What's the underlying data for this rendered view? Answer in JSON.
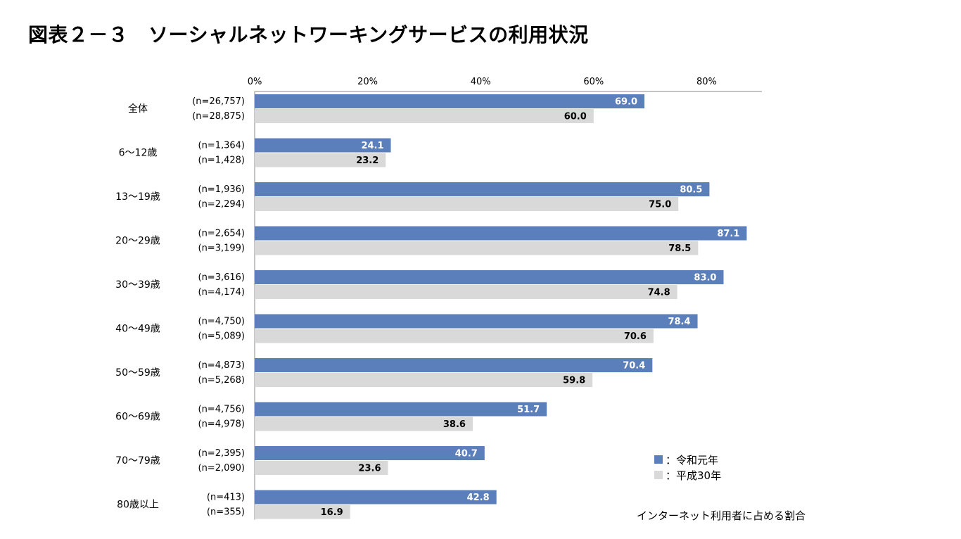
{
  "title": "図表２－３　ソーシャルネットワーキングサービスの利用状況",
  "note": "インターネット利用者に占める割合",
  "colors": {
    "series_reiwa": "#5b7fba",
    "series_heisei": "#d9d9d9",
    "axis": "#888888"
  },
  "legend": [
    {
      "label": "：令和元年"
    },
    {
      "label": "：平成30年"
    }
  ],
  "chart_data": {
    "type": "bar",
    "orientation": "horizontal",
    "title": "図表２－３　ソーシャルネットワーキングサービスの利用状況",
    "xlim": [
      0,
      90
    ],
    "xticks": [
      0,
      20,
      40,
      60,
      80
    ],
    "xtick_labels": [
      "0%",
      "20%",
      "40%",
      "60%",
      "80%"
    ],
    "categories": [
      "全体",
      "6～12歳",
      "13～19歳",
      "20～29歳",
      "30～39歳",
      "40～49歳",
      "50～59歳",
      "60～69歳",
      "70～79歳",
      "80歳以上"
    ],
    "series": [
      {
        "name": "令和元年",
        "values": [
          69.0,
          24.1,
          80.5,
          87.1,
          83.0,
          78.4,
          70.4,
          51.7,
          40.7,
          42.8
        ],
        "n": [
          "(n=26,757)",
          "(n=1,364)",
          "(n=1,936)",
          "(n=2,654)",
          "(n=3,616)",
          "(n=4,750)",
          "(n=4,873)",
          "(n=4,756)",
          "(n=2,395)",
          "(n=413)"
        ]
      },
      {
        "name": "平成30年",
        "values": [
          60.0,
          23.2,
          75.0,
          78.5,
          74.8,
          70.6,
          59.8,
          38.6,
          23.6,
          16.9
        ],
        "n": [
          "(n=28,875)",
          "(n=1,428)",
          "(n=2,294)",
          "(n=3,199)",
          "(n=4,174)",
          "(n=5,089)",
          "(n=5,268)",
          "(n=4,978)",
          "(n=2,090)",
          "(n=355)"
        ]
      }
    ]
  }
}
